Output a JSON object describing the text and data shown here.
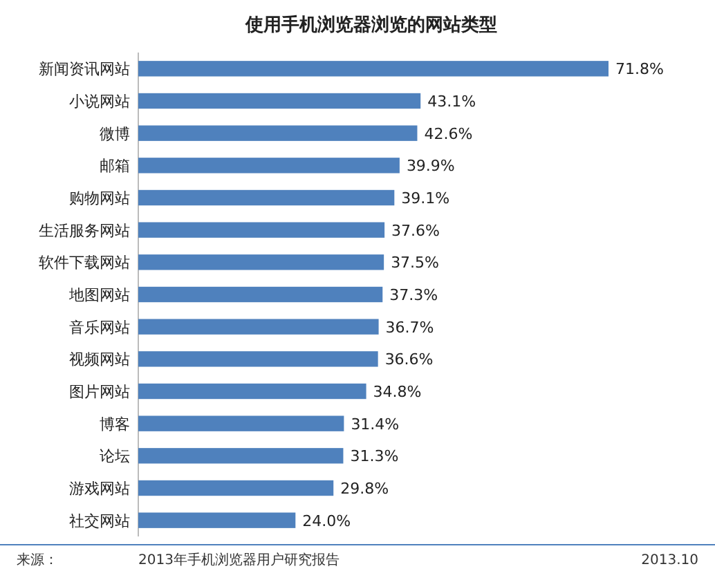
{
  "chart_data": {
    "type": "bar",
    "orientation": "horizontal",
    "title": "使用手机浏览器浏览的网站类型",
    "categories": [
      "新闻资讯网站",
      "小说网站",
      "微博",
      "邮箱",
      "购物网站",
      "生活服务网站",
      "软件下载网站",
      "地图网站",
      "音乐网站",
      "视频网站",
      "图片网站",
      "博客",
      "论坛",
      "游戏网站",
      "社交网站"
    ],
    "values": [
      71.8,
      43.1,
      42.6,
      39.9,
      39.1,
      37.6,
      37.5,
      37.3,
      36.7,
      36.6,
      34.8,
      31.4,
      31.3,
      29.8,
      24.0
    ],
    "value_labels": [
      "71.8%",
      "43.1%",
      "42.6%",
      "39.9%",
      "39.1%",
      "37.6%",
      "37.5%",
      "37.3%",
      "36.7%",
      "36.6%",
      "34.8%",
      "31.4%",
      "31.3%",
      "29.8%",
      "24.0%"
    ],
    "color": "#4f81bd",
    "annotations": [
      "来源：",
      "2013年手机浏览器用户研究报告",
      "2013.10"
    ]
  }
}
